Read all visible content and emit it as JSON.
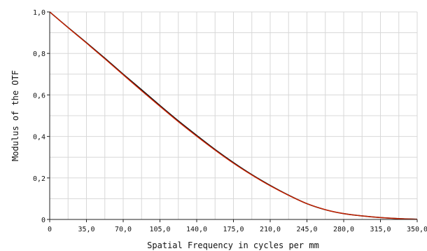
{
  "chart_data": {
    "type": "line",
    "title": "",
    "xlabel": "Spatial Frequency in cycles per mm",
    "ylabel": "Modulus of the OTF",
    "xlim": [
      0,
      350
    ],
    "ylim": [
      0,
      1
    ],
    "x_ticks": [
      "0",
      "35,0",
      "70,0",
      "105,0",
      "140,0",
      "175,0",
      "210,0",
      "245,0",
      "280,0",
      "315,0",
      "350,0"
    ],
    "y_ticks": [
      "0",
      "0,2",
      "0,4",
      "0,6",
      "0,8",
      "1,0"
    ],
    "grid": true,
    "legend": "none",
    "series": [
      {
        "color": "#111111",
        "x": [
          0,
          17.5,
          35,
          52.5,
          70,
          87.5,
          105,
          122.5,
          140,
          157.5,
          175,
          192.5,
          210,
          227.5,
          245,
          262.5,
          280,
          297.5,
          315,
          332.5,
          350
        ],
        "y": [
          1.0,
          0.925,
          0.852,
          0.777,
          0.7,
          0.625,
          0.549,
          0.475,
          0.405,
          0.337,
          0.274,
          0.216,
          0.164,
          0.117,
          0.076,
          0.047,
          0.028,
          0.017,
          0.009,
          0.004,
          0.001
        ]
      },
      {
        "color": "#cc2200",
        "x": [
          0,
          17.5,
          35,
          52.5,
          70,
          87.5,
          105,
          122.5,
          140,
          157.5,
          175,
          192.5,
          210,
          227.5,
          245,
          262.5,
          280,
          297.5,
          315,
          332.5,
          350
        ],
        "y": [
          1.0,
          0.924,
          0.85,
          0.774,
          0.697,
          0.62,
          0.545,
          0.471,
          0.401,
          0.334,
          0.271,
          0.214,
          0.162,
          0.116,
          0.076,
          0.047,
          0.028,
          0.017,
          0.009,
          0.004,
          0.001
        ]
      }
    ]
  }
}
